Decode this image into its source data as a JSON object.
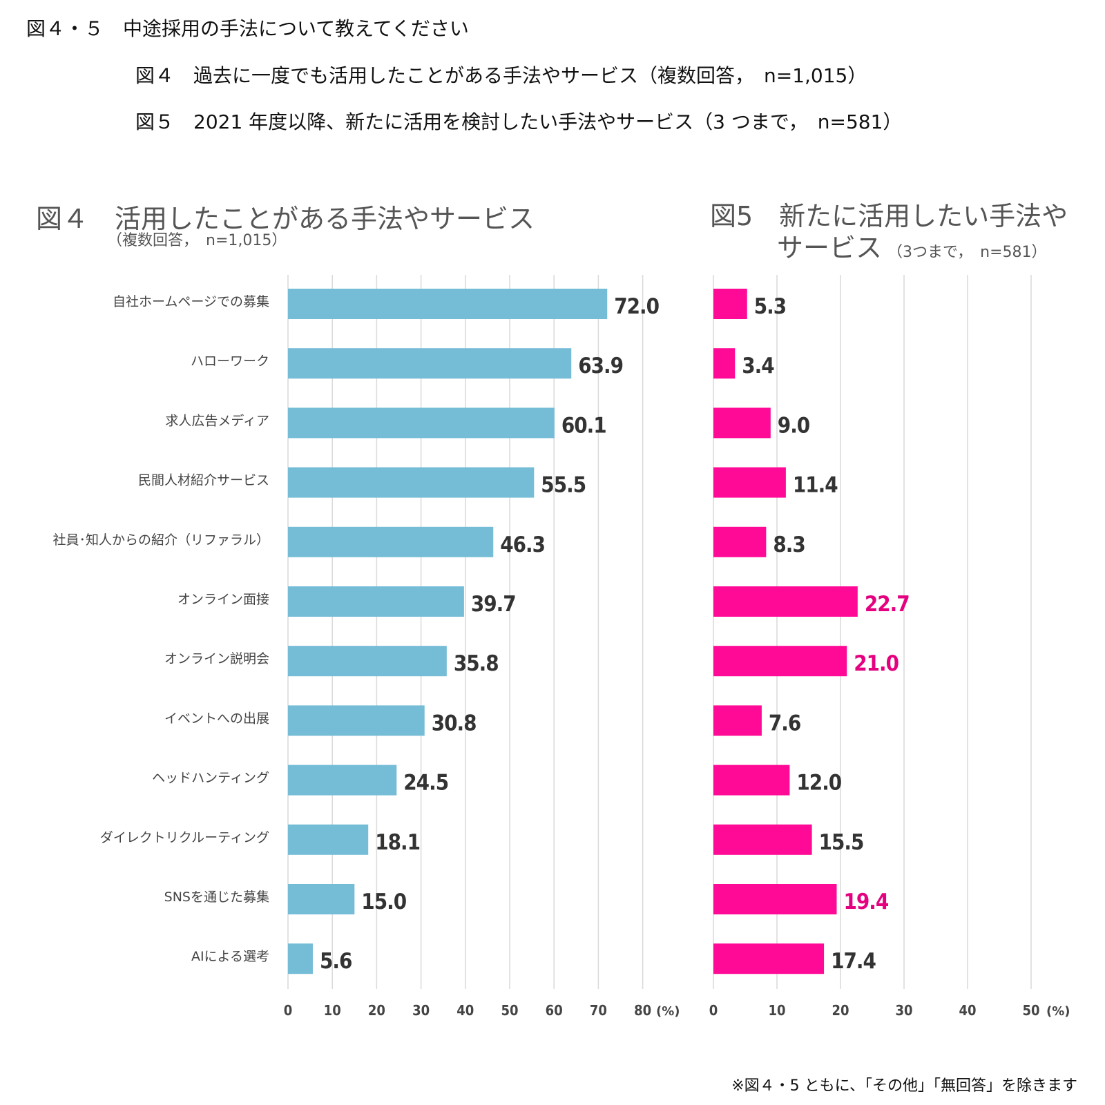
{
  "header": {
    "main_title": "図４・５　中途採用の手法について教えてください",
    "sub_title_4": "図４　過去に一度でも活用したことがある手法やサービス（複数回答，　n=1,015）",
    "sub_title_5": "図５　2021 年度以降、新たに活用を検討したい手法やサービス（3 つまで，　n=581）"
  },
  "footnote": "※図４・5 ともに、「その他」「無回答」を除きます",
  "chart_data": [
    {
      "type": "bar",
      "orientation": "horizontal",
      "title": "図４　活用したことがある手法やサービス",
      "subtitle": "（複数回答，　n=1,015）",
      "unit_label": "(%)",
      "xlim": [
        0,
        80
      ],
      "xticks": [
        0,
        10,
        20,
        30,
        40,
        50,
        60,
        70,
        80
      ],
      "grid": true,
      "bar_color": "#75BCD6",
      "label_color": "#333333",
      "categories": [
        "自社ホームページでの募集",
        "ハローワーク",
        "求人広告メディア",
        "民間人材紹介サービス",
        "社員･知人からの紹介（リファラル）",
        "オンライン面接",
        "オンライン説明会",
        "イベントへの出展",
        "ヘッドハンティング",
        "ダイレクトリクルーティング",
        "SNSを通じた募集",
        "AIによる選考"
      ],
      "values": [
        72.0,
        63.9,
        60.1,
        55.5,
        46.3,
        39.7,
        35.8,
        30.8,
        24.5,
        18.1,
        15.0,
        5.6
      ],
      "labels": [
        "72.0",
        "63.9",
        "60.1",
        "55.5",
        "46.3",
        "39.7",
        "35.8",
        "30.8",
        "24.5",
        "18.1",
        "15.0",
        "5.6"
      ]
    },
    {
      "type": "bar",
      "orientation": "horizontal",
      "title_line1": "図5　新たに活用したい手法や",
      "title_line2": "サービス",
      "subtitle": "（3つまで，　n=581）",
      "unit_label": "(%)",
      "xlim": [
        0,
        50
      ],
      "xticks": [
        0,
        10,
        20,
        30,
        40,
        50
      ],
      "grid": true,
      "bar_color": "#FF0A96",
      "label_color": "#333333",
      "highlight_color": "#E5007F",
      "highlight_labels": [
        "22.7",
        "21.0",
        "19.4"
      ],
      "categories": [
        "自社ホームページでの募集",
        "ハローワーク",
        "求人広告メディア",
        "民間人材紹介サービス",
        "社員･知人からの紹介（リファラル）",
        "オンライン面接",
        "オンライン説明会",
        "イベントへの出展",
        "ヘッドハンティング",
        "ダイレクトリクルーティング",
        "SNSを通じた募集",
        "AIによる選考"
      ],
      "values": [
        5.3,
        3.4,
        9.0,
        11.4,
        8.3,
        22.7,
        21.0,
        7.6,
        12.0,
        15.5,
        19.4,
        17.4
      ],
      "labels": [
        "5.3",
        "3.4",
        "9.0",
        "11.4",
        "8.3",
        "22.7",
        "21.0",
        "7.6",
        "12.0",
        "15.5",
        "19.4",
        "17.4"
      ]
    }
  ]
}
